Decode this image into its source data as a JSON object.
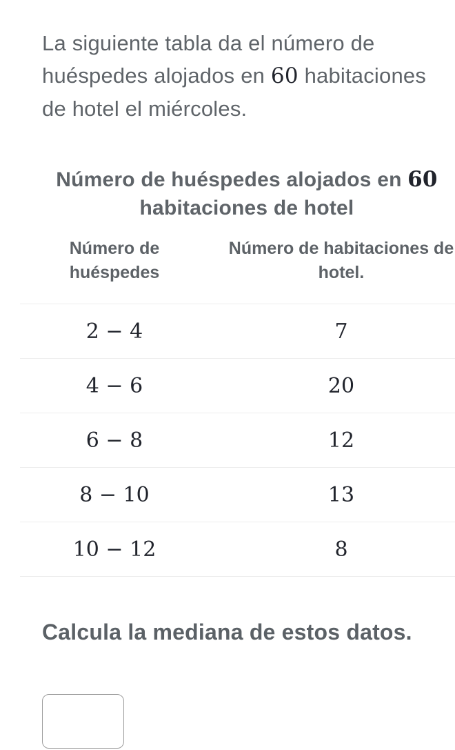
{
  "intro": {
    "line1": "La siguiente tabla da el número de",
    "line2_pre": "huéspedes alojados en ",
    "line2_math": "60",
    "line2_post": " habitaciones",
    "line3": "de hotel el miércoles."
  },
  "table": {
    "title_line1_pre": "Número de huéspedes alojados en ",
    "title_line1_math": "60",
    "title_line2": "habitaciones de hotel",
    "columns": {
      "col1_line1": "Número de",
      "col1_line2": "huéspedes",
      "col2_line1": "Número de habitaciones de",
      "col2_line2": "hotel."
    },
    "rows": [
      {
        "range": "2 − 4",
        "count": "7"
      },
      {
        "range": "4 − 6",
        "count": "20"
      },
      {
        "range": "6 − 8",
        "count": "12"
      },
      {
        "range": "8 − 10",
        "count": "13"
      },
      {
        "range": "10 − 12",
        "count": "8"
      }
    ]
  },
  "question": {
    "text": "Calcula la mediana de estos datos."
  },
  "answer_input": {
    "value": "",
    "placeholder": ""
  },
  "colors": {
    "body_text": "#5f6469",
    "header_text": "#5d6267",
    "question_text": "#5b6166",
    "math_text": "#21242c",
    "row_divider": "#ededed",
    "input_border": "#9e9e9e",
    "background": "#ffffff"
  }
}
